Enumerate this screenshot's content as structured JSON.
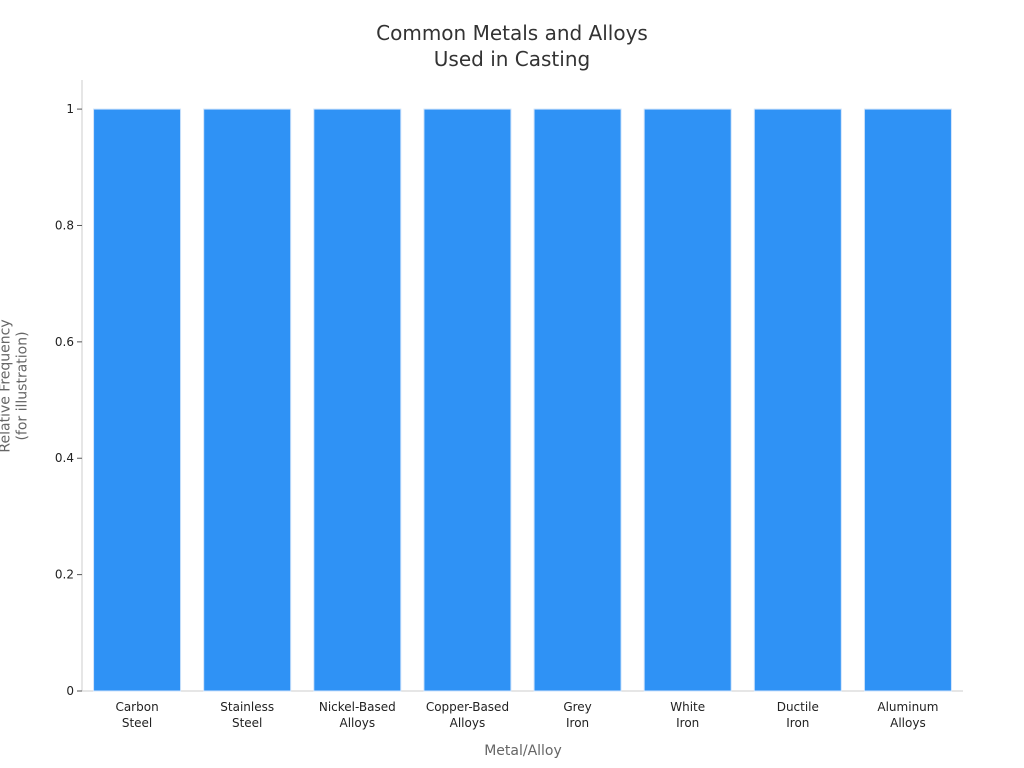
{
  "chart_data": {
    "type": "bar",
    "title": "Common Metals and Alloys\nUsed in Casting",
    "x_label": "Metal/Alloy",
    "y_label": "Relative Frequency\n(for illustration)",
    "categories": [
      "Carbon\nSteel",
      "Stainless\nSteel",
      "Nickel-Based\nAlloys",
      "Copper-Based\nAlloys",
      "Grey\nIron",
      "White\nIron",
      "Ductile\nIron",
      "Aluminum\nAlloys"
    ],
    "values": [
      1,
      1,
      1,
      1,
      1,
      1,
      1,
      1
    ],
    "color": "#2f92f5",
    "ylim": [
      0,
      1.05
    ],
    "yticks": [
      0,
      0.2,
      0.4,
      0.6,
      0.8,
      1
    ],
    "grid": false
  }
}
